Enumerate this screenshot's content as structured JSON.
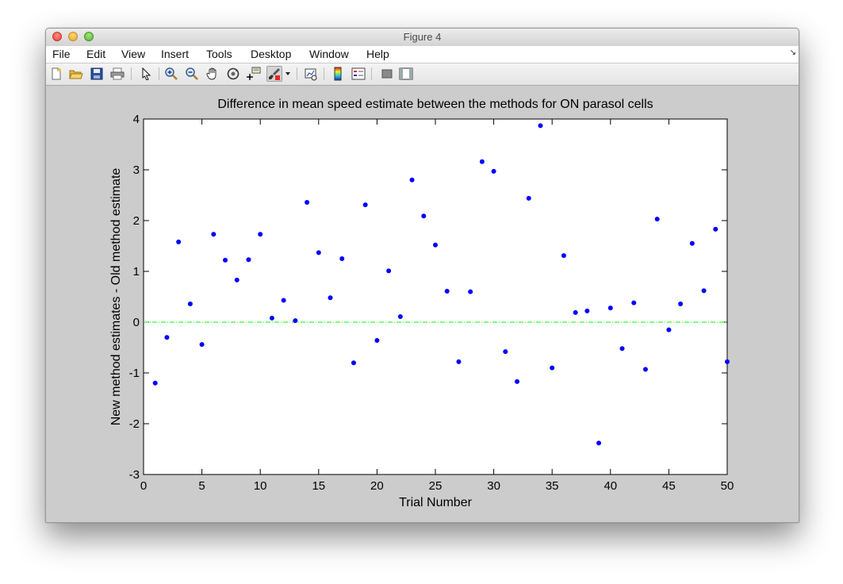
{
  "window": {
    "title": "Figure 4"
  },
  "menu": [
    {
      "label": "File"
    },
    {
      "label": "Edit"
    },
    {
      "label": "View"
    },
    {
      "label": "Insert"
    },
    {
      "label": "Tools"
    },
    {
      "label": "Desktop"
    },
    {
      "label": "Window"
    },
    {
      "label": "Help"
    }
  ],
  "toolbar": [
    {
      "icon": "new-figure-icon"
    },
    {
      "icon": "open-file-icon"
    },
    {
      "icon": "save-figure-icon"
    },
    {
      "icon": "print-figure-icon"
    },
    {
      "icon": "edit-plot-arrow-icon"
    },
    {
      "icon": "zoom-in-icon"
    },
    {
      "icon": "zoom-out-icon"
    },
    {
      "icon": "pan-hand-icon"
    },
    {
      "icon": "rotate-3d-icon"
    },
    {
      "icon": "data-cursor-icon"
    },
    {
      "icon": "brush-data-icon"
    },
    {
      "icon": "brush-dropdown-icon"
    },
    {
      "icon": "link-plot-icon"
    },
    {
      "icon": "insert-colorbar-icon"
    },
    {
      "icon": "insert-legend-icon"
    },
    {
      "icon": "hide-plot-tools-icon"
    },
    {
      "icon": "show-plot-tools-icon"
    }
  ],
  "chart_data": {
    "type": "scatter",
    "title": "Difference in mean speed estimate between the methods for ON parasol cells",
    "xlabel": "Trial Number",
    "ylabel": "New method estimates - Old method estimate",
    "xlim": [
      0,
      50
    ],
    "ylim": [
      -3,
      4
    ],
    "xticks": [
      0,
      5,
      10,
      15,
      20,
      25,
      30,
      35,
      40,
      45,
      50
    ],
    "yticks": [
      -3,
      -2,
      -1,
      0,
      1,
      2,
      3,
      4
    ],
    "grid": false,
    "series": [
      {
        "marker_color": "#0000ff",
        "x": [
          1,
          2,
          3,
          4,
          5,
          6,
          7,
          8,
          9,
          10,
          11,
          12,
          13,
          14,
          15,
          16,
          17,
          18,
          19,
          20,
          21,
          22,
          23,
          24,
          25,
          26,
          27,
          28,
          29,
          30,
          31,
          32,
          33,
          34,
          35,
          36,
          37,
          38,
          39,
          40,
          41,
          42,
          43,
          44,
          45,
          46,
          47,
          48,
          49,
          50
        ],
        "y": [
          -1.2,
          -0.3,
          1.58,
          0.36,
          -0.44,
          1.73,
          1.22,
          0.83,
          1.23,
          1.73,
          0.08,
          0.43,
          0.03,
          2.36,
          1.37,
          0.48,
          1.25,
          -0.8,
          2.31,
          -0.36,
          1.01,
          0.11,
          2.8,
          2.09,
          1.52,
          0.61,
          -0.78,
          0.6,
          3.16,
          2.97,
          -0.58,
          -1.17,
          2.44,
          3.87,
          -0.9,
          1.31,
          0.19,
          0.22,
          -2.38,
          0.28,
          -0.52,
          0.38,
          -0.93,
          2.03,
          -0.15,
          0.36,
          1.55,
          0.62,
          1.83,
          -0.78
        ]
      }
    ],
    "reference_line": {
      "y": 0,
      "color": "#00ff00",
      "style": "dash-dot"
    }
  }
}
